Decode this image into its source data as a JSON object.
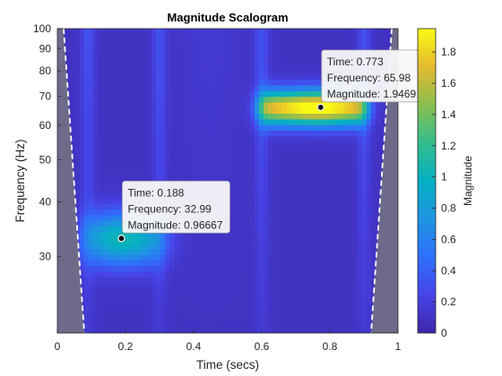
{
  "chart_data": {
    "type": "heatmap",
    "title": "Magnitude Scalogram",
    "xlabel": "Time (secs)",
    "ylabel": "Frequency (Hz)",
    "colorbar_label": "Magnitude",
    "xlim": [
      0,
      1
    ],
    "ylim": [
      20,
      100
    ],
    "y_scale": "log",
    "x_ticks": [
      "0",
      "0.2",
      "0.4",
      "0.6",
      "0.8",
      "1"
    ],
    "y_ticks": [
      "30",
      "40",
      "50",
      "60",
      "70",
      "80",
      "90",
      "100"
    ],
    "colorbar_ticks": [
      "0",
      "0.2",
      "0.4",
      "0.6",
      "0.8",
      "1",
      "1.2",
      "1.4",
      "1.6",
      "1.8"
    ],
    "colorbar_range": [
      0,
      1.95
    ],
    "colormap": "parula",
    "cone_of_influence": {
      "fill": "#6e6a8a",
      "line": "white dashed"
    },
    "components": [
      {
        "t_start": 0.1,
        "t_end": 0.3,
        "peak_time": 0.188,
        "peak_frequency": 32.99,
        "peak_magnitude": 0.96667
      },
      {
        "t_start": 0.6,
        "t_end": 0.9,
        "peak_time": 0.773,
        "peak_frequency": 65.98,
        "peak_magnitude": 1.9469
      }
    ],
    "datatips": [
      {
        "x": 0.188,
        "y": 32.99,
        "lines": [
          "Time: 0.188",
          "Frequency: 32.99",
          "Magnitude: 0.96667"
        ]
      },
      {
        "x": 0.773,
        "y": 65.98,
        "lines": [
          "Time: 0.773",
          "Frequency: 65.98",
          "Magnitude: 1.9469"
        ]
      }
    ]
  }
}
